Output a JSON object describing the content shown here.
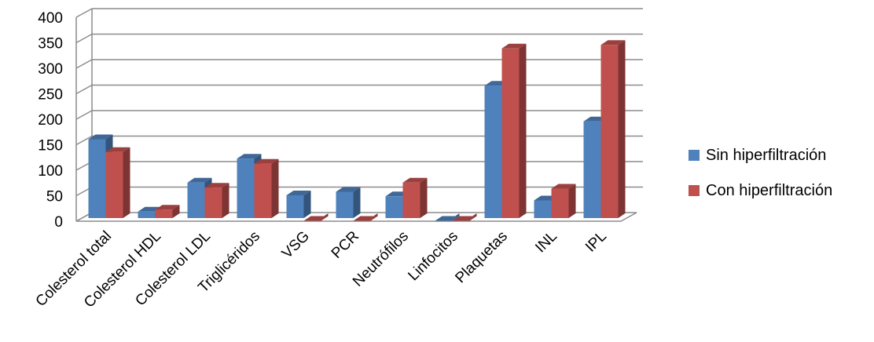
{
  "chart_data": {
    "type": "bar",
    "categories": [
      "Colesterol total",
      "Colesterol HDL",
      "Colesterol LDL",
      "Triglicéridos",
      "VSG",
      "PCR",
      "Neutrófilos",
      "Linfocitos",
      "Plaquetas",
      "INL",
      "IPL"
    ],
    "series": [
      {
        "name": "Sin hiperfiltración",
        "values": [
          170,
          28,
          85,
          132,
          60,
          67,
          58,
          10,
          275,
          50,
          205
        ],
        "color": "#4F81BD"
      },
      {
        "name": "Con hiperfiltración",
        "values": [
          145,
          32,
          75,
          122,
          10,
          10,
          85,
          10,
          348,
          73,
          355
        ],
        "color": "#C0504D"
      }
    ],
    "ylim": [
      0,
      400
    ],
    "yticks": [
      "0",
      "50",
      "100",
      "150",
      "200",
      "250",
      "300",
      "350",
      "400"
    ],
    "grid": true,
    "legend_position": "right",
    "style": "3d-clustered"
  }
}
